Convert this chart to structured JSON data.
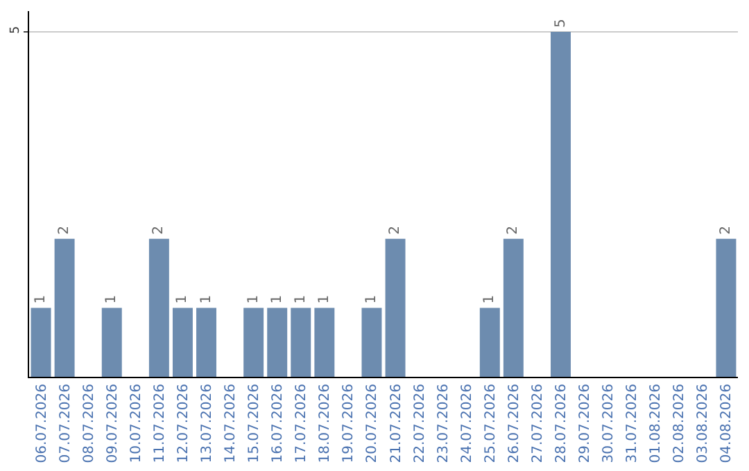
{
  "chart_data": {
    "type": "bar",
    "categories": [
      "06.07.2026",
      "07.07.2026",
      "08.07.2026",
      "09.07.2026",
      "10.07.2026",
      "11.07.2026",
      "12.07.2026",
      "13.07.2026",
      "14.07.2026",
      "15.07.2026",
      "16.07.2026",
      "17.07.2026",
      "18.07.2026",
      "19.07.2026",
      "20.07.2026",
      "21.07.2026",
      "22.07.2026",
      "23.07.2026",
      "24.07.2026",
      "25.07.2026",
      "26.07.2026",
      "27.07.2026",
      "28.07.2026",
      "29.07.2026",
      "30.07.2026",
      "31.07.2026",
      "01.08.2026",
      "02.08.2026",
      "03.08.2026",
      "04.08.2026"
    ],
    "values": [
      1,
      2,
      0,
      1,
      0,
      2,
      1,
      1,
      0,
      1,
      1,
      1,
      1,
      0,
      1,
      2,
      0,
      0,
      0,
      1,
      2,
      0,
      5,
      0,
      0,
      0,
      0,
      0,
      0,
      2
    ],
    "value_labels": [
      "1",
      "2",
      null,
      "1",
      null,
      "2",
      "1",
      "1",
      null,
      "1",
      "1",
      "1",
      "1",
      null,
      "1",
      "2",
      null,
      null,
      null,
      "1",
      "2",
      null,
      "5",
      null,
      null,
      null,
      null,
      null,
      null,
      "2"
    ],
    "color": "#6d8caf",
    "ylim": [
      0,
      5.3
    ],
    "yticks": [
      5
    ],
    "grid": "y"
  }
}
